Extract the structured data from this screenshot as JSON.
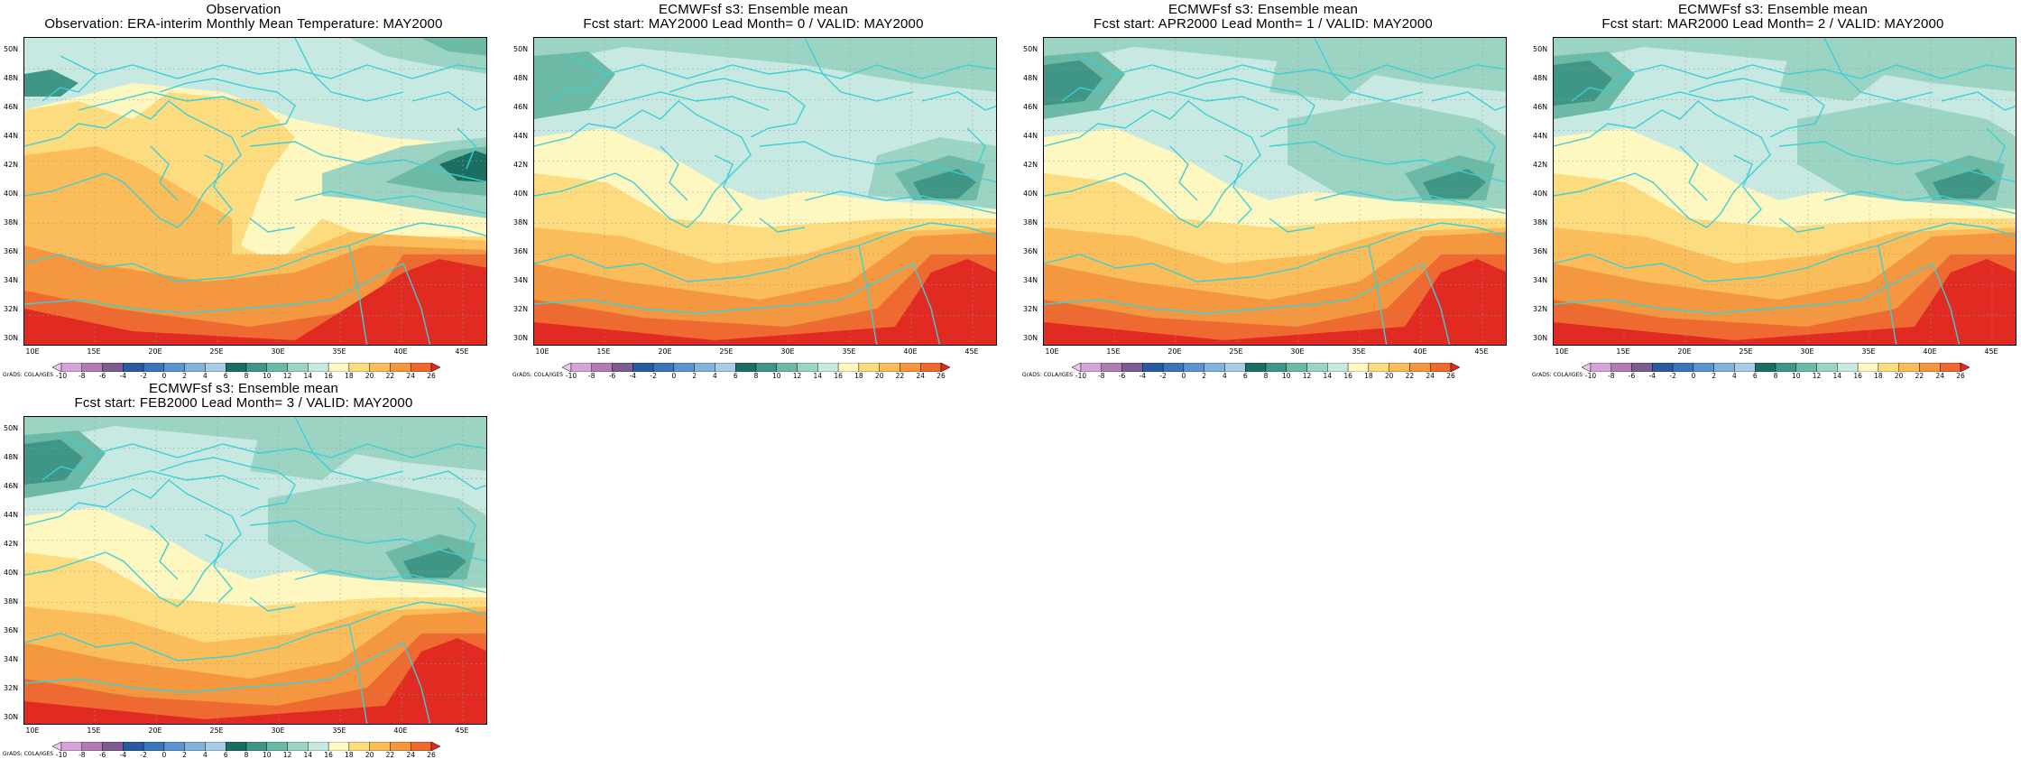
{
  "panels": [
    {
      "id": "obs",
      "title_line1": "Observation",
      "title_line2": "Observation: ERA-interim Monthly Mean Temperature: MAY2000"
    },
    {
      "id": "lead0",
      "title_line1": "ECMWFsf s3: Ensemble mean",
      "title_line2": "Fcst start: MAY2000   Lead Month= 0 / VALID: MAY2000"
    },
    {
      "id": "lead1",
      "title_line1": "ECMWFsf s3: Ensemble mean",
      "title_line2": "Fcst start: APR2000   Lead Month= 1 / VALID: MAY2000"
    },
    {
      "id": "lead2",
      "title_line1": "ECMWFsf s3: Ensemble mean",
      "title_line2": "Fcst start: MAR2000   Lead Month= 2 / VALID: MAY2000"
    },
    {
      "id": "lead3",
      "title_line1": "ECMWFsf s3: Ensemble mean",
      "title_line2": "Fcst start: FEB2000   Lead Month= 3 / VALID: MAY2000"
    }
  ],
  "lat_labels": [
    "50N",
    "48N",
    "46N",
    "44N",
    "42N",
    "40N",
    "38N",
    "36N",
    "34N",
    "32N",
    "30N"
  ],
  "lon_labels": [
    "10E",
    "15E",
    "20E",
    "25E",
    "30E",
    "35E",
    "40E",
    "45E"
  ],
  "colorbar": {
    "labels": [
      "-10",
      "-8",
      "-6",
      "-4",
      "-2",
      "0",
      "2",
      "4",
      "6",
      "8",
      "10",
      "12",
      "14",
      "16",
      "18",
      "20",
      "22",
      "24",
      "26"
    ],
    "colors": [
      "#ecc8ec",
      "#d6a4d8",
      "#b07cb2",
      "#7d5b93",
      "#2a5aa0",
      "#3d75bd",
      "#5d94cf",
      "#82b3dd",
      "#a7cde6",
      "#1a6f62",
      "#3f9686",
      "#6cbaa6",
      "#9cd4c4",
      "#c8e9e2",
      "#fff7c0",
      "#fddc80",
      "#fbbd5a",
      "#f4973f",
      "#ee6a30",
      "#e02a22"
    ],
    "credit": "GrADS: COLA/IGES"
  },
  "colors": {
    "coast": "#3ccfd6",
    "grid": "#999999"
  }
}
